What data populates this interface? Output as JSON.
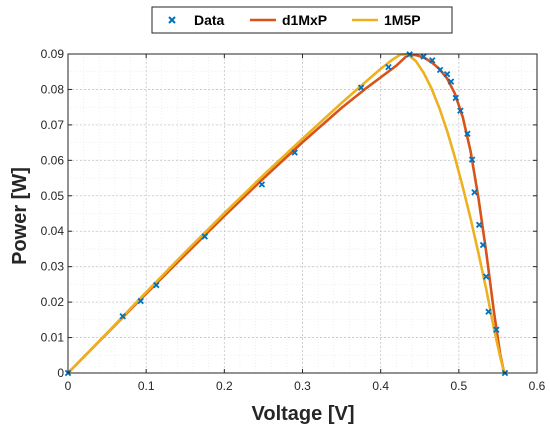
{
  "chart_data": {
    "type": "line",
    "title": "",
    "xlabel": "Voltage [V]",
    "ylabel": "Power [W]",
    "xlim": [
      0,
      0.6
    ],
    "ylim": [
      0,
      0.09
    ],
    "x_ticks": [
      0,
      0.1,
      0.2,
      0.3,
      0.4,
      0.5,
      0.6
    ],
    "x_tick_labels": [
      "0",
      "0.1",
      "0.2",
      "0.3",
      "0.4",
      "0.5",
      "0.6"
    ],
    "y_ticks": [
      0,
      0.01,
      0.02,
      0.03,
      0.04,
      0.05,
      0.06,
      0.07,
      0.08,
      0.09
    ],
    "y_tick_labels": [
      "0",
      "0.01",
      "0.02",
      "0.03",
      "0.04",
      "0.05",
      "0.06",
      "0.07",
      "0.08",
      "0.09"
    ],
    "grid": "major and minor, dotted",
    "legend_position": "top",
    "series": [
      {
        "name": "Data",
        "kind": "markers",
        "marker": "x",
        "color": "#0072BD",
        "x": [
          0.0,
          0.07,
          0.093,
          0.113,
          0.175,
          0.248,
          0.29,
          0.375,
          0.41,
          0.437,
          0.455,
          0.466,
          0.476,
          0.485,
          0.49,
          0.496,
          0.502,
          0.511,
          0.517,
          0.52,
          0.526,
          0.531,
          0.535,
          0.538,
          0.548,
          0.559
        ],
        "y": [
          0.0,
          0.016,
          0.0203,
          0.0248,
          0.0385,
          0.0532,
          0.0622,
          0.0805,
          0.0863,
          0.0899,
          0.0893,
          0.0882,
          0.0855,
          0.0843,
          0.0822,
          0.0776,
          0.074,
          0.0675,
          0.0602,
          0.051,
          0.0418,
          0.0361,
          0.0272,
          0.0173,
          0.0122,
          0.0
        ]
      },
      {
        "name": "d1MxP",
        "kind": "line",
        "color": "#D95319",
        "x": [
          0.0,
          0.05,
          0.1,
          0.15,
          0.2,
          0.25,
          0.3,
          0.35,
          0.38,
          0.4,
          0.42,
          0.435,
          0.445,
          0.455,
          0.465,
          0.475,
          0.485,
          0.495,
          0.505,
          0.515,
          0.525,
          0.535,
          0.545,
          0.553,
          0.558
        ],
        "y": [
          0.0,
          0.0112,
          0.0224,
          0.0334,
          0.0443,
          0.0549,
          0.0651,
          0.0748,
          0.0801,
          0.0834,
          0.0867,
          0.0898,
          0.0897,
          0.089,
          0.0877,
          0.0858,
          0.0831,
          0.0788,
          0.0722,
          0.0626,
          0.0495,
          0.0342,
          0.0171,
          0.0052,
          0.0
        ]
      },
      {
        "name": "1M5P",
        "kind": "line",
        "color": "#EDB120",
        "x": [
          0.0,
          0.05,
          0.1,
          0.15,
          0.2,
          0.25,
          0.3,
          0.35,
          0.38,
          0.4,
          0.415,
          0.425,
          0.435,
          0.445,
          0.455,
          0.465,
          0.475,
          0.485,
          0.495,
          0.505,
          0.515,
          0.525,
          0.535,
          0.545,
          0.553,
          0.558
        ],
        "y": [
          0.0,
          0.0113,
          0.0228,
          0.0341,
          0.0451,
          0.0558,
          0.0661,
          0.0762,
          0.082,
          0.0858,
          0.0884,
          0.0898,
          0.0899,
          0.088,
          0.0847,
          0.0803,
          0.0748,
          0.0683,
          0.0608,
          0.0525,
          0.0436,
          0.0339,
          0.0237,
          0.0124,
          0.0045,
          0.0
        ]
      }
    ]
  }
}
